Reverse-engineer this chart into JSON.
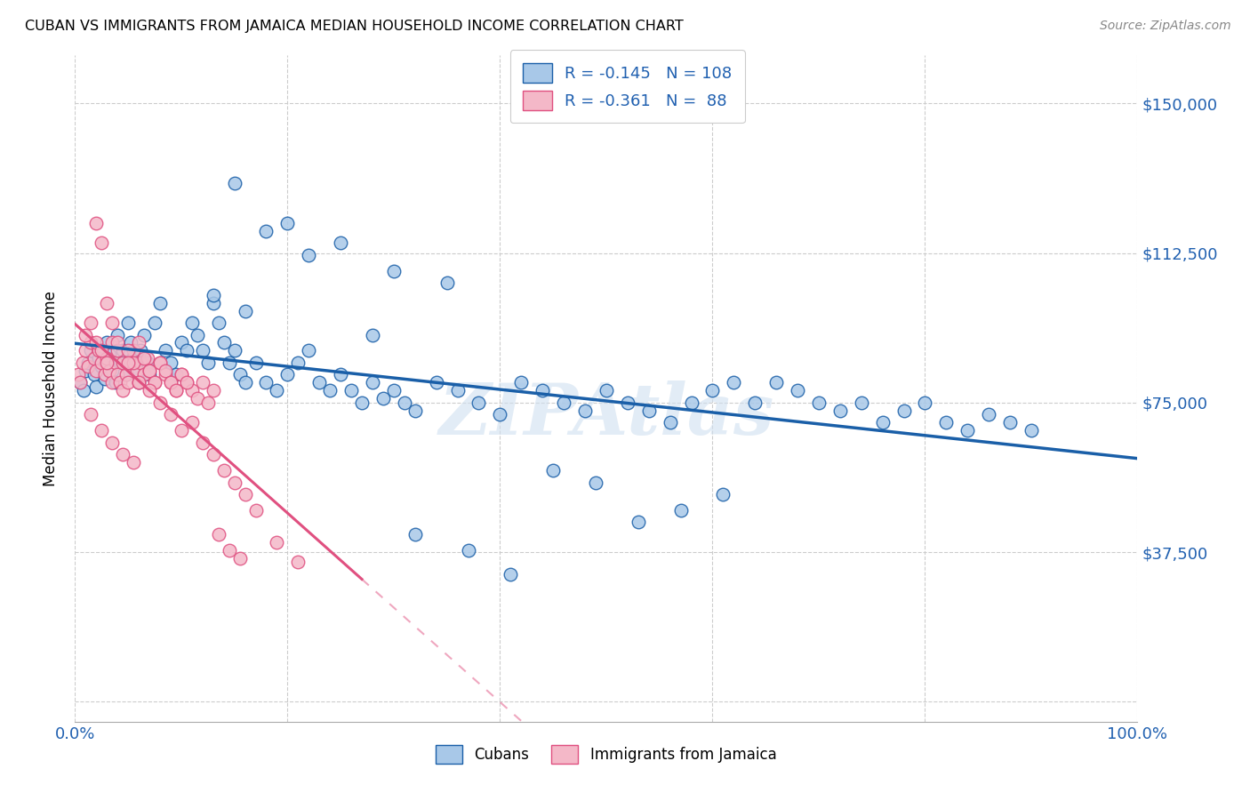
{
  "title": "CUBAN VS IMMIGRANTS FROM JAMAICA MEDIAN HOUSEHOLD INCOME CORRELATION CHART",
  "source": "Source: ZipAtlas.com",
  "ylabel": "Median Household Income",
  "yticks": [
    0,
    37500,
    75000,
    112500,
    150000
  ],
  "ytick_labels": [
    "",
    "$37,500",
    "$75,000",
    "$112,500",
    "$150,000"
  ],
  "ymin": -5000,
  "ymax": 162000,
  "xmin": 0.0,
  "xmax": 1.0,
  "legend_r1": "-0.145",
  "legend_n1": "108",
  "legend_r2": "-0.361",
  "legend_n2": " 88",
  "legend_label1": "Cubans",
  "legend_label2": "Immigrants from Jamaica",
  "color_blue": "#a8c8e8",
  "color_pink": "#f4b8c8",
  "color_blue_line": "#1a5fa8",
  "color_pink_line": "#e05080",
  "watermark": "ZIPAtlas",
  "blue_scatter_x": [
    0.005,
    0.008,
    0.01,
    0.012,
    0.015,
    0.018,
    0.02,
    0.022,
    0.025,
    0.028,
    0.03,
    0.032,
    0.035,
    0.038,
    0.04,
    0.042,
    0.045,
    0.048,
    0.05,
    0.052,
    0.055,
    0.058,
    0.06,
    0.062,
    0.065,
    0.068,
    0.07,
    0.075,
    0.08,
    0.085,
    0.09,
    0.095,
    0.1,
    0.105,
    0.11,
    0.115,
    0.12,
    0.125,
    0.13,
    0.135,
    0.14,
    0.145,
    0.15,
    0.155,
    0.16,
    0.17,
    0.18,
    0.19,
    0.2,
    0.21,
    0.22,
    0.23,
    0.24,
    0.25,
    0.26,
    0.27,
    0.28,
    0.29,
    0.3,
    0.31,
    0.32,
    0.34,
    0.36,
    0.38,
    0.4,
    0.42,
    0.44,
    0.46,
    0.48,
    0.5,
    0.52,
    0.54,
    0.56,
    0.58,
    0.6,
    0.62,
    0.64,
    0.66,
    0.68,
    0.7,
    0.72,
    0.74,
    0.76,
    0.78,
    0.8,
    0.82,
    0.84,
    0.86,
    0.88,
    0.9,
    0.15,
    0.2,
    0.25,
    0.3,
    0.35,
    0.18,
    0.22,
    0.13,
    0.16,
    0.28,
    0.32,
    0.37,
    0.41,
    0.45,
    0.49,
    0.53,
    0.57,
    0.61
  ],
  "blue_scatter_y": [
    80000,
    78000,
    83000,
    85000,
    88000,
    82000,
    79000,
    86000,
    84000,
    81000,
    90000,
    87000,
    83000,
    80000,
    92000,
    85000,
    88000,
    82000,
    95000,
    90000,
    86000,
    83000,
    80000,
    88000,
    92000,
    85000,
    82000,
    95000,
    100000,
    88000,
    85000,
    82000,
    90000,
    88000,
    95000,
    92000,
    88000,
    85000,
    100000,
    95000,
    90000,
    85000,
    88000,
    82000,
    80000,
    85000,
    80000,
    78000,
    82000,
    85000,
    88000,
    80000,
    78000,
    82000,
    78000,
    75000,
    80000,
    76000,
    78000,
    75000,
    73000,
    80000,
    78000,
    75000,
    72000,
    80000,
    78000,
    75000,
    73000,
    78000,
    75000,
    73000,
    70000,
    75000,
    78000,
    80000,
    75000,
    80000,
    78000,
    75000,
    73000,
    75000,
    70000,
    73000,
    75000,
    70000,
    68000,
    72000,
    70000,
    68000,
    130000,
    120000,
    115000,
    108000,
    105000,
    118000,
    112000,
    102000,
    98000,
    92000,
    42000,
    38000,
    32000,
    58000,
    55000,
    45000,
    48000,
    52000
  ],
  "pink_scatter_x": [
    0.003,
    0.005,
    0.007,
    0.01,
    0.012,
    0.015,
    0.018,
    0.02,
    0.022,
    0.025,
    0.028,
    0.03,
    0.032,
    0.035,
    0.038,
    0.04,
    0.042,
    0.045,
    0.048,
    0.05,
    0.052,
    0.055,
    0.058,
    0.06,
    0.062,
    0.065,
    0.068,
    0.07,
    0.075,
    0.08,
    0.085,
    0.09,
    0.095,
    0.1,
    0.105,
    0.11,
    0.115,
    0.12,
    0.125,
    0.13,
    0.01,
    0.015,
    0.02,
    0.025,
    0.03,
    0.035,
    0.04,
    0.045,
    0.05,
    0.055,
    0.06,
    0.065,
    0.07,
    0.075,
    0.08,
    0.085,
    0.09,
    0.095,
    0.1,
    0.105,
    0.02,
    0.025,
    0.03,
    0.035,
    0.04,
    0.05,
    0.06,
    0.07,
    0.08,
    0.09,
    0.1,
    0.11,
    0.12,
    0.13,
    0.14,
    0.15,
    0.16,
    0.17,
    0.19,
    0.21,
    0.015,
    0.025,
    0.035,
    0.045,
    0.055,
    0.135,
    0.145,
    0.155
  ],
  "pink_scatter_y": [
    82000,
    80000,
    85000,
    88000,
    84000,
    90000,
    86000,
    83000,
    88000,
    85000,
    82000,
    86000,
    83000,
    80000,
    85000,
    82000,
    80000,
    78000,
    82000,
    80000,
    85000,
    88000,
    83000,
    80000,
    85000,
    82000,
    86000,
    83000,
    80000,
    85000,
    82000,
    80000,
    78000,
    82000,
    80000,
    78000,
    76000,
    80000,
    75000,
    78000,
    92000,
    95000,
    90000,
    88000,
    85000,
    90000,
    88000,
    85000,
    88000,
    85000,
    90000,
    86000,
    83000,
    80000,
    85000,
    83000,
    80000,
    78000,
    82000,
    80000,
    120000,
    115000,
    100000,
    95000,
    90000,
    85000,
    80000,
    78000,
    75000,
    72000,
    68000,
    70000,
    65000,
    62000,
    58000,
    55000,
    52000,
    48000,
    40000,
    35000,
    72000,
    68000,
    65000,
    62000,
    60000,
    42000,
    38000,
    36000
  ]
}
